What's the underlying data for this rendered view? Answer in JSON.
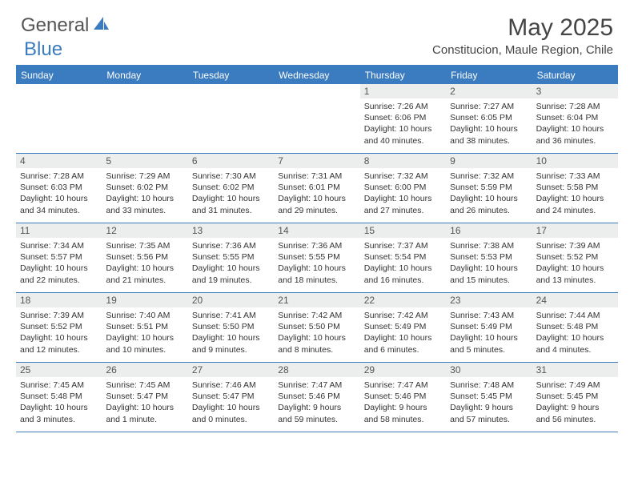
{
  "logo": {
    "general": "General",
    "blue": "Blue"
  },
  "title": "May 2025",
  "location": "Constitucion, Maule Region, Chile",
  "colors": {
    "brand": "#3b7bbf",
    "header_text": "#555",
    "daynum_bg": "#eceded",
    "text": "#333",
    "white": "#ffffff"
  },
  "weekdays": [
    "Sunday",
    "Monday",
    "Tuesday",
    "Wednesday",
    "Thursday",
    "Friday",
    "Saturday"
  ],
  "weeks": [
    [
      {
        "n": "",
        "sr": "",
        "ss": "",
        "dl": ""
      },
      {
        "n": "",
        "sr": "",
        "ss": "",
        "dl": ""
      },
      {
        "n": "",
        "sr": "",
        "ss": "",
        "dl": ""
      },
      {
        "n": "",
        "sr": "",
        "ss": "",
        "dl": ""
      },
      {
        "n": "1",
        "sr": "7:26 AM",
        "ss": "6:06 PM",
        "dl": "10 hours and 40 minutes."
      },
      {
        "n": "2",
        "sr": "7:27 AM",
        "ss": "6:05 PM",
        "dl": "10 hours and 38 minutes."
      },
      {
        "n": "3",
        "sr": "7:28 AM",
        "ss": "6:04 PM",
        "dl": "10 hours and 36 minutes."
      }
    ],
    [
      {
        "n": "4",
        "sr": "7:28 AM",
        "ss": "6:03 PM",
        "dl": "10 hours and 34 minutes."
      },
      {
        "n": "5",
        "sr": "7:29 AM",
        "ss": "6:02 PM",
        "dl": "10 hours and 33 minutes."
      },
      {
        "n": "6",
        "sr": "7:30 AM",
        "ss": "6:02 PM",
        "dl": "10 hours and 31 minutes."
      },
      {
        "n": "7",
        "sr": "7:31 AM",
        "ss": "6:01 PM",
        "dl": "10 hours and 29 minutes."
      },
      {
        "n": "8",
        "sr": "7:32 AM",
        "ss": "6:00 PM",
        "dl": "10 hours and 27 minutes."
      },
      {
        "n": "9",
        "sr": "7:32 AM",
        "ss": "5:59 PM",
        "dl": "10 hours and 26 minutes."
      },
      {
        "n": "10",
        "sr": "7:33 AM",
        "ss": "5:58 PM",
        "dl": "10 hours and 24 minutes."
      }
    ],
    [
      {
        "n": "11",
        "sr": "7:34 AM",
        "ss": "5:57 PM",
        "dl": "10 hours and 22 minutes."
      },
      {
        "n": "12",
        "sr": "7:35 AM",
        "ss": "5:56 PM",
        "dl": "10 hours and 21 minutes."
      },
      {
        "n": "13",
        "sr": "7:36 AM",
        "ss": "5:55 PM",
        "dl": "10 hours and 19 minutes."
      },
      {
        "n": "14",
        "sr": "7:36 AM",
        "ss": "5:55 PM",
        "dl": "10 hours and 18 minutes."
      },
      {
        "n": "15",
        "sr": "7:37 AM",
        "ss": "5:54 PM",
        "dl": "10 hours and 16 minutes."
      },
      {
        "n": "16",
        "sr": "7:38 AM",
        "ss": "5:53 PM",
        "dl": "10 hours and 15 minutes."
      },
      {
        "n": "17",
        "sr": "7:39 AM",
        "ss": "5:52 PM",
        "dl": "10 hours and 13 minutes."
      }
    ],
    [
      {
        "n": "18",
        "sr": "7:39 AM",
        "ss": "5:52 PM",
        "dl": "10 hours and 12 minutes."
      },
      {
        "n": "19",
        "sr": "7:40 AM",
        "ss": "5:51 PM",
        "dl": "10 hours and 10 minutes."
      },
      {
        "n": "20",
        "sr": "7:41 AM",
        "ss": "5:50 PM",
        "dl": "10 hours and 9 minutes."
      },
      {
        "n": "21",
        "sr": "7:42 AM",
        "ss": "5:50 PM",
        "dl": "10 hours and 8 minutes."
      },
      {
        "n": "22",
        "sr": "7:42 AM",
        "ss": "5:49 PM",
        "dl": "10 hours and 6 minutes."
      },
      {
        "n": "23",
        "sr": "7:43 AM",
        "ss": "5:49 PM",
        "dl": "10 hours and 5 minutes."
      },
      {
        "n": "24",
        "sr": "7:44 AM",
        "ss": "5:48 PM",
        "dl": "10 hours and 4 minutes."
      }
    ],
    [
      {
        "n": "25",
        "sr": "7:45 AM",
        "ss": "5:48 PM",
        "dl": "10 hours and 3 minutes."
      },
      {
        "n": "26",
        "sr": "7:45 AM",
        "ss": "5:47 PM",
        "dl": "10 hours and 1 minute."
      },
      {
        "n": "27",
        "sr": "7:46 AM",
        "ss": "5:47 PM",
        "dl": "10 hours and 0 minutes."
      },
      {
        "n": "28",
        "sr": "7:47 AM",
        "ss": "5:46 PM",
        "dl": "9 hours and 59 minutes."
      },
      {
        "n": "29",
        "sr": "7:47 AM",
        "ss": "5:46 PM",
        "dl": "9 hours and 58 minutes."
      },
      {
        "n": "30",
        "sr": "7:48 AM",
        "ss": "5:45 PM",
        "dl": "9 hours and 57 minutes."
      },
      {
        "n": "31",
        "sr": "7:49 AM",
        "ss": "5:45 PM",
        "dl": "9 hours and 56 minutes."
      }
    ]
  ],
  "labels": {
    "sunrise": "Sunrise: ",
    "sunset": "Sunset: ",
    "daylight": "Daylight: "
  }
}
